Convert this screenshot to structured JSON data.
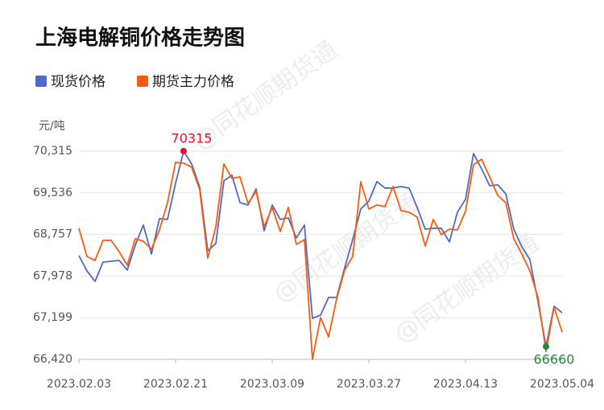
{
  "chart_data": {
    "type": "line",
    "title": "上海电解铜价格走势图",
    "y_unit": "元/吨",
    "watermark": "@同花顺期货通",
    "categories": [
      "2023.02.03",
      null,
      null,
      null,
      null,
      null,
      null,
      null,
      null,
      null,
      null,
      null,
      "2023.02.21",
      null,
      null,
      null,
      null,
      null,
      null,
      null,
      null,
      null,
      null,
      null,
      "2023.03.09",
      null,
      null,
      null,
      null,
      null,
      null,
      null,
      null,
      null,
      null,
      null,
      "2023.03.27",
      null,
      null,
      null,
      null,
      null,
      null,
      null,
      null,
      null,
      null,
      null,
      "2023.04.13",
      null,
      null,
      null,
      null,
      null,
      null,
      null,
      null,
      null,
      null,
      null,
      "2023.05.04"
    ],
    "series": [
      {
        "name": "现货价格",
        "color": "#4e6ac6",
        "values": [
          68360,
          68074,
          67879,
          68240,
          68255,
          68270,
          68090,
          68556,
          68932,
          68390,
          69052,
          69037,
          69714,
          70315,
          70075,
          69639,
          68450,
          68586,
          69759,
          69864,
          69353,
          69308,
          69608,
          68826,
          69308,
          69037,
          69067,
          68691,
          68932,
          67187,
          67247,
          67578,
          67578,
          68135,
          68661,
          69232,
          69383,
          69744,
          69624,
          69624,
          69654,
          69624,
          69263,
          68856,
          68872,
          68872,
          68616,
          69172,
          69413,
          70270,
          69984,
          69669,
          69684,
          69518,
          68856,
          68526,
          68285,
          67503,
          66660,
          67413,
          67292
        ]
      },
      {
        "name": "期货主力价格",
        "color": "#fb5a0e",
        "values": [
          68872,
          68345,
          68270,
          68646,
          68646,
          68435,
          68180,
          68676,
          68631,
          68480,
          68841,
          69353,
          70105,
          70090,
          70015,
          69593,
          68315,
          68902,
          70075,
          69804,
          69834,
          69338,
          69563,
          68902,
          69263,
          68811,
          69263,
          68571,
          68661,
          66420,
          67202,
          66841,
          67548,
          68090,
          68345,
          69744,
          69232,
          69308,
          69278,
          69654,
          69202,
          69172,
          69082,
          68541,
          69037,
          68751,
          68856,
          68841,
          69187,
          70060,
          70165,
          69834,
          69488,
          69353,
          68676,
          68390,
          68074,
          67578,
          66570,
          67398,
          66931
        ]
      }
    ],
    "ylim": [
      66420,
      70315
    ],
    "yticks": [
      {
        "value": 66420,
        "label": "66,420"
      },
      {
        "value": 67199,
        "label": "67,199"
      },
      {
        "value": 67978,
        "label": "67,978"
      },
      {
        "value": 68757,
        "label": "68,757"
      },
      {
        "value": 69536,
        "label": "69,536"
      },
      {
        "value": 70315,
        "label": "70,315"
      }
    ],
    "grid": true,
    "max_color": "#e5102b",
    "min_color": "#1a8a3c"
  }
}
